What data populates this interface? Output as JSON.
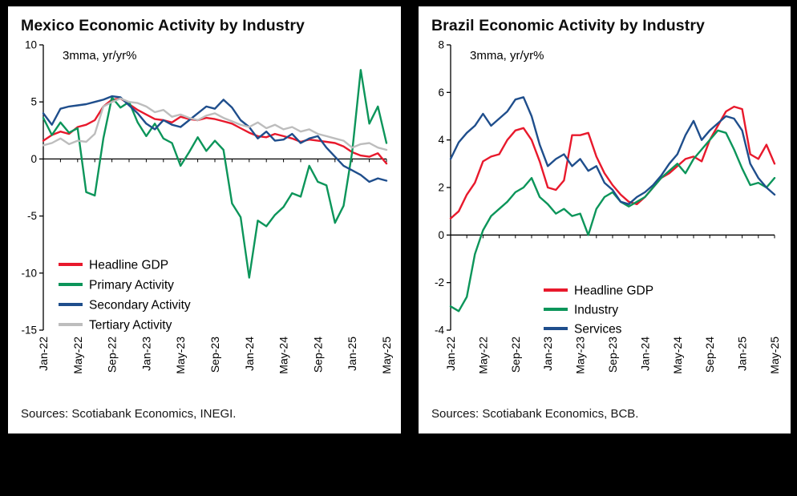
{
  "page": {
    "background_color": "#000000",
    "panel_color": "#ffffff"
  },
  "chart_data": [
    {
      "type": "line",
      "title": "Mexico Economic Activity by Industry",
      "unit_label": "3mma, yr/yr%",
      "source": "Sources: Scotiabank Economics, INEGI.",
      "ylim": [
        -15,
        10
      ],
      "yticks": [
        10,
        5,
        0,
        -5,
        -10,
        -15
      ],
      "x_tick_labels": [
        "Jan-22",
        "May-22",
        "Sep-22",
        "Jan-23",
        "May-23",
        "Sep-23",
        "Jan-24",
        "May-24",
        "Sep-24",
        "Jan-25",
        "May-25"
      ],
      "x_tick_every": 4,
      "n_points": 41,
      "grid": false,
      "legend_position": "lower-left",
      "series": [
        {
          "name": "Headline GDP",
          "color": "#e8192c",
          "values": [
            1.6,
            2.1,
            2.4,
            2.2,
            2.8,
            3.0,
            3.4,
            4.6,
            5.2,
            5.3,
            4.8,
            4.3,
            3.9,
            3.5,
            3.4,
            3.2,
            3.7,
            3.5,
            3.4,
            3.6,
            3.5,
            3.3,
            3.1,
            2.7,
            2.3,
            2.0,
            1.9,
            2.2,
            2.0,
            1.8,
            1.5,
            1.7,
            1.6,
            1.5,
            1.4,
            1.1,
            0.6,
            0.3,
            0.2,
            0.5,
            -0.4
          ]
        },
        {
          "name": "Primary Activity",
          "color": "#0c955a",
          "values": [
            3.6,
            2.1,
            3.2,
            2.3,
            2.7,
            -2.9,
            -3.2,
            1.8,
            5.4,
            4.5,
            5.0,
            3.2,
            2.0,
            3.1,
            1.8,
            1.4,
            -0.6,
            0.6,
            1.9,
            0.7,
            1.6,
            0.8,
            -3.9,
            -5.1,
            -10.4,
            -5.4,
            -5.9,
            -4.9,
            -4.2,
            -3.0,
            -3.3,
            -0.6,
            -2.0,
            -2.3,
            -5.6,
            -4.1,
            0.6,
            7.8,
            3.1,
            4.6,
            1.4
          ]
        },
        {
          "name": "Secondary Activity",
          "color": "#1f4e8c",
          "values": [
            4.0,
            3.0,
            4.4,
            4.6,
            4.7,
            4.8,
            5.0,
            5.2,
            5.5,
            5.4,
            4.7,
            4.0,
            3.1,
            2.6,
            3.4,
            3.0,
            2.8,
            3.4,
            4.0,
            4.6,
            4.4,
            5.2,
            4.5,
            3.4,
            2.8,
            1.8,
            2.4,
            1.6,
            1.7,
            2.2,
            1.4,
            1.8,
            2.0,
            1.0,
            0.2,
            -0.6,
            -1.0,
            -1.4,
            -2.0,
            -1.7,
            -1.9
          ]
        },
        {
          "name": "Tertiary Activity",
          "color": "#bdbdbd",
          "values": [
            1.2,
            1.4,
            1.8,
            1.3,
            1.6,
            1.5,
            2.2,
            4.6,
            5.0,
            5.3,
            5.0,
            4.9,
            4.6,
            4.1,
            4.3,
            3.7,
            3.9,
            3.6,
            3.4,
            3.8,
            4.0,
            3.6,
            3.3,
            3.0,
            2.8,
            3.2,
            2.7,
            3.0,
            2.6,
            2.8,
            2.4,
            2.6,
            2.2,
            2.0,
            1.8,
            1.6,
            1.0,
            1.3,
            1.4,
            1.0,
            0.8
          ]
        }
      ]
    },
    {
      "type": "line",
      "title": "Brazil Economic Activity by Industry",
      "unit_label": "3mma, yr/yr%",
      "source": "Sources: Scotiabank Economics, BCB.",
      "ylim": [
        -4,
        8
      ],
      "yticks": [
        8,
        6,
        4,
        2,
        0,
        -2,
        -4
      ],
      "x_tick_labels": [
        "Jan-22",
        "May-22",
        "Sep-22",
        "Jan-23",
        "May-23",
        "Sep-23",
        "Jan-24",
        "May-24",
        "Sep-24",
        "Jan-25",
        "May-25"
      ],
      "x_tick_every": 4,
      "n_points": 41,
      "grid": false,
      "legend_position": "lower-center",
      "series": [
        {
          "name": "Headline GDP",
          "color": "#e8192c",
          "values": [
            0.7,
            1.0,
            1.7,
            2.2,
            3.1,
            3.3,
            3.4,
            4.0,
            4.4,
            4.5,
            4.0,
            3.1,
            2.0,
            1.9,
            2.3,
            4.2,
            4.2,
            4.3,
            3.3,
            2.6,
            2.1,
            1.7,
            1.4,
            1.3,
            1.6,
            2.0,
            2.4,
            2.6,
            2.9,
            3.2,
            3.3,
            3.1,
            4.0,
            4.6,
            5.2,
            5.4,
            5.3,
            3.4,
            3.2,
            3.8,
            3.0
          ]
        },
        {
          "name": "Industry",
          "color": "#0c955a",
          "values": [
            -3.0,
            -3.2,
            -2.6,
            -0.8,
            0.2,
            0.8,
            1.1,
            1.4,
            1.8,
            2.0,
            2.4,
            1.6,
            1.3,
            0.9,
            1.1,
            0.8,
            0.9,
            0.0,
            1.1,
            1.6,
            1.8,
            1.4,
            1.2,
            1.4,
            1.6,
            2.0,
            2.4,
            2.7,
            3.0,
            2.6,
            3.2,
            3.6,
            4.0,
            4.4,
            4.3,
            3.6,
            2.8,
            2.1,
            2.2,
            2.0,
            2.4
          ]
        },
        {
          "name": "Services",
          "color": "#1f4e8c",
          "values": [
            3.2,
            3.9,
            4.3,
            4.6,
            5.1,
            4.6,
            4.9,
            5.2,
            5.7,
            5.8,
            5.0,
            3.8,
            2.9,
            3.2,
            3.4,
            2.9,
            3.2,
            2.7,
            2.9,
            2.2,
            1.9,
            1.4,
            1.3,
            1.6,
            1.8,
            2.1,
            2.5,
            3.0,
            3.4,
            4.2,
            4.8,
            4.0,
            4.4,
            4.7,
            5.0,
            4.9,
            4.4,
            3.0,
            2.4,
            2.0,
            1.7
          ]
        }
      ]
    }
  ]
}
